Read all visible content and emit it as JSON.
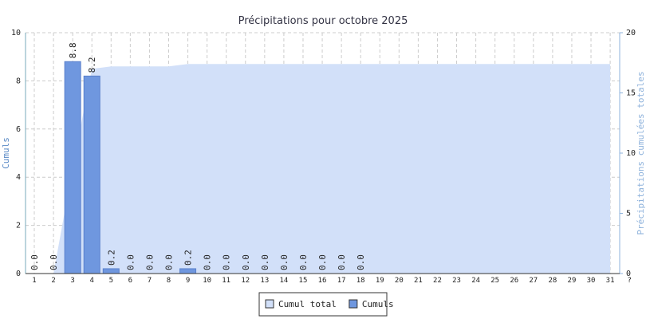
{
  "chart_data": {
    "type": "bar",
    "title": "Précipitations pour octobre 2025",
    "ylabel": "Cumuls",
    "y2label": "Précipitations cumulées totales",
    "categories": [
      "1",
      "2",
      "3",
      "4",
      "5",
      "6",
      "7",
      "8",
      "9",
      "10",
      "11",
      "12",
      "13",
      "14",
      "15",
      "16",
      "17",
      "18",
      "19",
      "20",
      "21",
      "22",
      "23",
      "24",
      "25",
      "26",
      "27",
      "28",
      "29",
      "30",
      "31",
      "?"
    ],
    "series": [
      {
        "name": "Cumul total",
        "type": "area",
        "axis": "y2",
        "color": "#d2e0f9",
        "values": [
          0,
          0,
          8.8,
          17,
          17.2,
          17.2,
          17.2,
          17.2,
          17.4,
          17.4,
          17.4,
          17.4,
          17.4,
          17.4,
          17.4,
          17.4,
          17.4,
          17.4,
          17.4,
          17.4,
          17.4,
          17.4,
          17.4,
          17.4,
          17.4,
          17.4,
          17.4,
          17.4,
          17.4,
          17.4,
          17.4,
          null
        ]
      },
      {
        "name": "Cumuls",
        "type": "bar",
        "color": "#6f97df",
        "values": [
          0,
          0,
          8.8,
          8.2,
          0.2,
          0,
          0,
          0,
          0.2,
          0,
          0,
          0,
          0,
          0,
          0,
          0,
          0,
          0,
          null,
          null,
          null,
          null,
          null,
          null,
          null,
          null,
          null,
          null,
          null,
          null,
          null,
          null
        ],
        "value_labels": [
          "0.0",
          "0.0",
          "8.8",
          "8.2",
          "0.2",
          "0.0",
          "0.0",
          "0.0",
          "0.2",
          "0.0",
          "0.0",
          "0.0",
          "0.0",
          "0.0",
          "0.0",
          "0.0",
          "0.0",
          "0.0",
          null,
          null,
          null,
          null,
          null,
          null,
          null,
          null,
          null,
          null,
          null,
          null,
          null,
          null
        ]
      }
    ],
    "ylim": [
      0,
      10
    ],
    "yticks": [
      0,
      2,
      4,
      6,
      8,
      10
    ],
    "y2lim": [
      0,
      20
    ],
    "y2ticks": [
      0,
      5,
      10,
      15,
      20
    ],
    "grid": true,
    "legend": "bottom"
  }
}
